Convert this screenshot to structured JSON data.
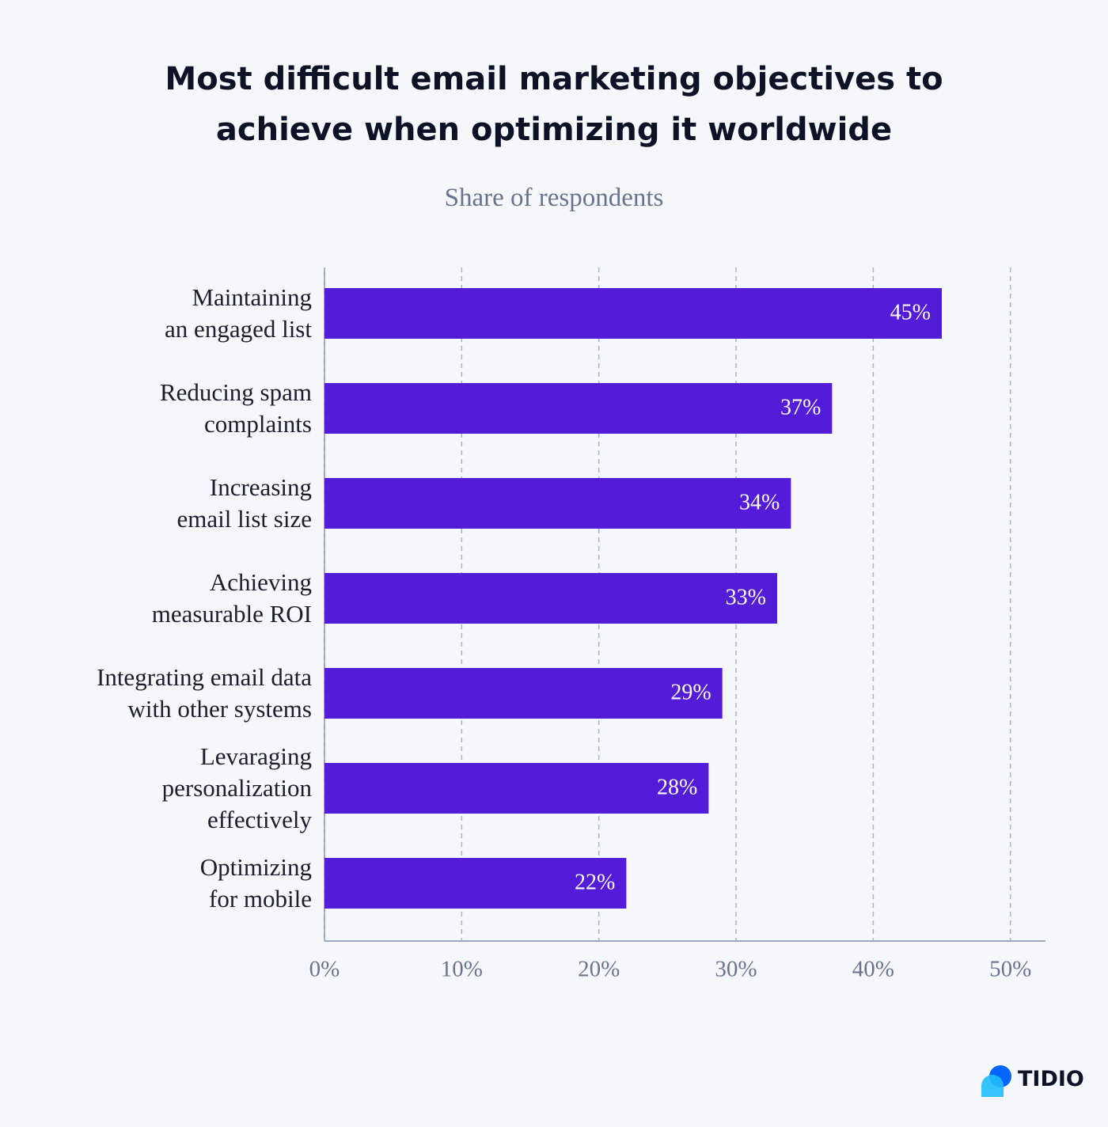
{
  "chart_data": {
    "type": "hbar",
    "title": "Most difficult email marketing objectives to achieve when optimizing it worldwide",
    "subtitle": "Share of respondents",
    "categories": [
      "Maintaining\nan engaged list",
      "Reducing spam\ncomplaints",
      "Increasing\nemail list size",
      "Achieving\nmeasurable ROI",
      "Integrating email data\nwith other systems",
      "Levaraging\npersonalization\neffectively",
      "Optimizing\nfor mobile"
    ],
    "values": [
      45,
      37,
      34,
      33,
      29,
      28,
      22
    ],
    "value_labels": [
      "45%",
      "37%",
      "34%",
      "33%",
      "29%",
      "28%",
      "22%"
    ],
    "color": "#521cd9",
    "xlim": [
      0,
      52.5
    ],
    "xticks": [
      {
        "value": 0,
        "label": "0%"
      },
      {
        "value": 10,
        "label": "10%"
      },
      {
        "value": 20,
        "label": "20%"
      },
      {
        "value": 30,
        "label": "30%"
      },
      {
        "value": 40,
        "label": "40%"
      },
      {
        "value": 50,
        "label": "50%"
      }
    ],
    "grid": true
  },
  "brand": "TIDIO"
}
